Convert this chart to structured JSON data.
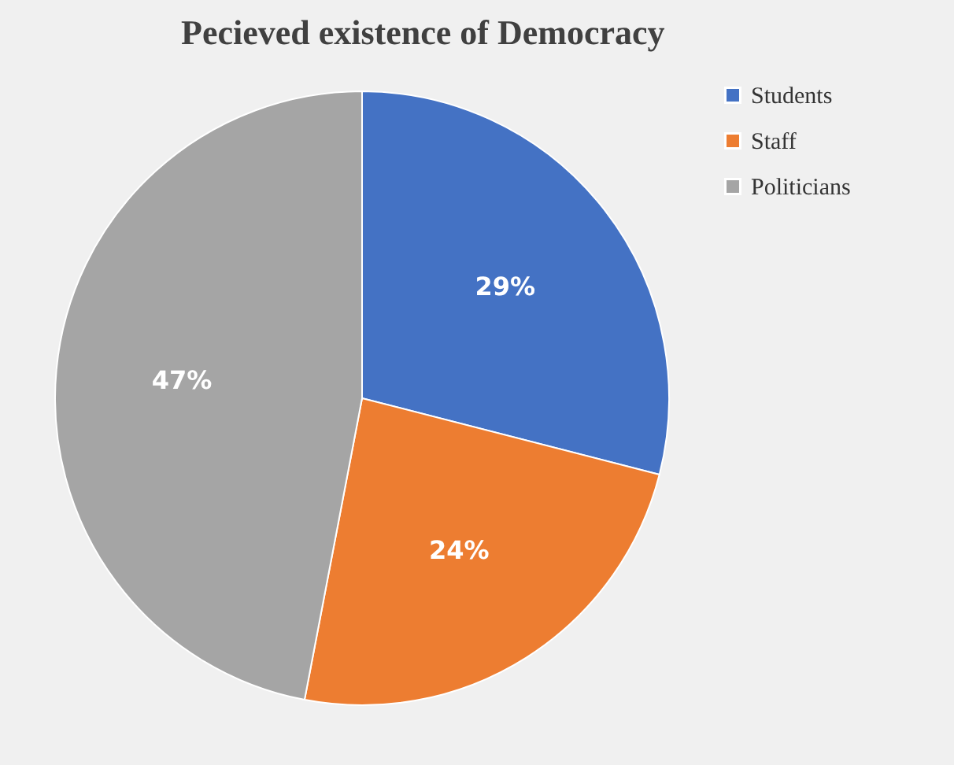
{
  "chart_data": {
    "type": "pie",
    "title": "Pecieved existence of Democracy",
    "categories": [
      "Students",
      "Staff",
      "Politicians"
    ],
    "values": [
      29,
      24,
      47
    ],
    "colors": [
      "#4472c4",
      "#ed7d31",
      "#a5a5a5"
    ],
    "value_labels": [
      "29%",
      "24%",
      "47%"
    ],
    "legend": "right"
  }
}
